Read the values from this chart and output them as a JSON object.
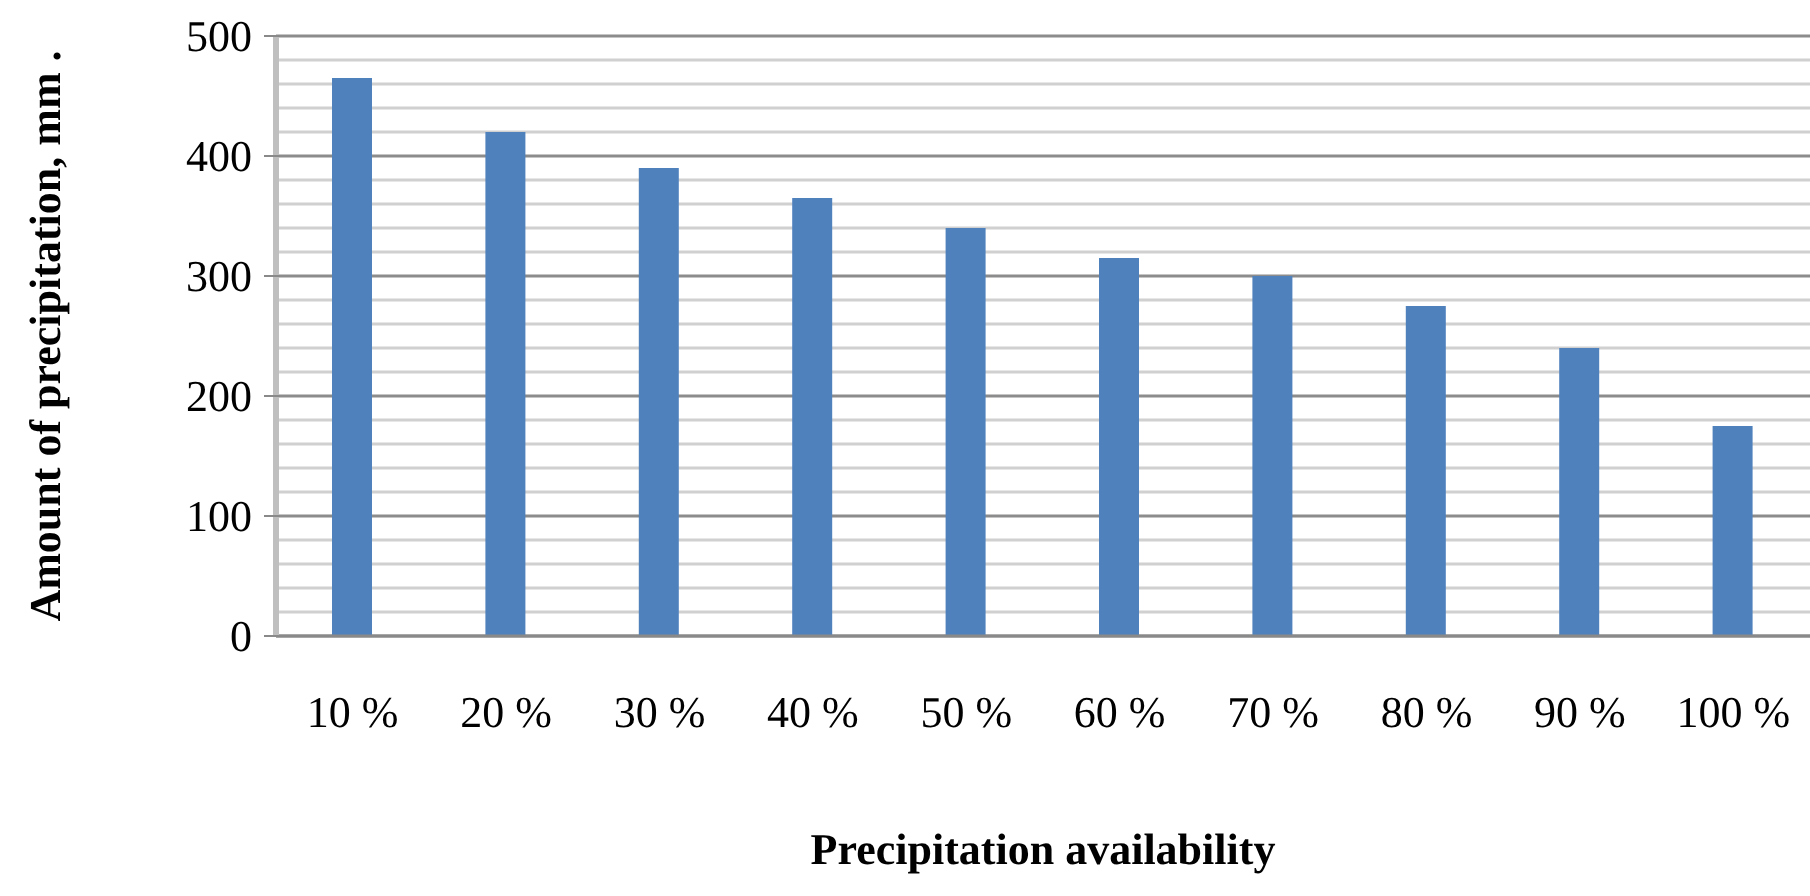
{
  "chart_data": {
    "type": "bar",
    "xlabel": "Precipitation availability",
    "ylabel": "Amount of precipitation, mm .",
    "categories": [
      "10 %",
      "20 %",
      "30 %",
      "40 %",
      "50 %",
      "60 %",
      "70 %",
      "80 %",
      "90 %",
      "100 %"
    ],
    "values": [
      465,
      420,
      390,
      365,
      340,
      315,
      300,
      275,
      240,
      175
    ],
    "color": "#4f81bd",
    "ylim": [
      0,
      500
    ],
    "yticks": [
      0,
      {
        "value": 20,
        "label": null
      },
      {
        "value": 40,
        "label": null
      },
      {
        "value": 60,
        "label": null
      },
      {
        "value": 80,
        "label": null
      },
      100,
      {
        "value": 120,
        "label": null
      },
      {
        "value": 140,
        "label": null
      },
      {
        "value": 160,
        "label": null
      },
      {
        "value": 180,
        "label": null
      },
      200,
      {
        "value": 220,
        "label": null
      },
      {
        "value": 240,
        "label": null
      },
      {
        "value": 260,
        "label": null
      },
      {
        "value": 280,
        "label": null
      },
      300,
      {
        "value": 320,
        "label": null
      },
      {
        "value": 340,
        "label": null
      },
      {
        "value": 360,
        "label": null
      },
      {
        "value": 380,
        "label": null
      },
      400,
      {
        "value": 420,
        "label": null
      },
      {
        "value": 440,
        "label": null
      },
      {
        "value": 460,
        "label": null
      },
      {
        "value": 480,
        "label": null
      },
      500
    ],
    "grid": true,
    "legend": false
  }
}
